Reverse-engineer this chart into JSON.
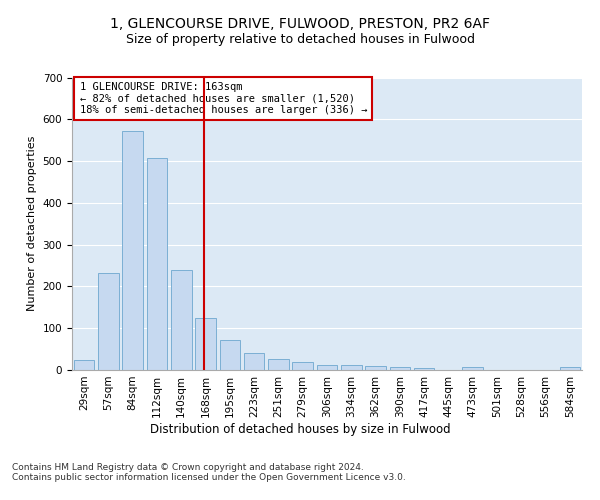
{
  "title1": "1, GLENCOURSE DRIVE, FULWOOD, PRESTON, PR2 6AF",
  "title2": "Size of property relative to detached houses in Fulwood",
  "xlabel": "Distribution of detached houses by size in Fulwood",
  "ylabel": "Number of detached properties",
  "footnote": "Contains HM Land Registry data © Crown copyright and database right 2024.\nContains public sector information licensed under the Open Government Licence v3.0.",
  "categories": [
    "29sqm",
    "57sqm",
    "84sqm",
    "112sqm",
    "140sqm",
    "168sqm",
    "195sqm",
    "223sqm",
    "251sqm",
    "279sqm",
    "306sqm",
    "334sqm",
    "362sqm",
    "390sqm",
    "417sqm",
    "445sqm",
    "473sqm",
    "501sqm",
    "528sqm",
    "556sqm",
    "584sqm"
  ],
  "values": [
    25,
    233,
    573,
    508,
    240,
    125,
    72,
    40,
    26,
    18,
    13,
    11,
    10,
    6,
    5,
    0,
    8,
    0,
    0,
    0,
    7
  ],
  "bar_color": "#c6d9f0",
  "bar_edgecolor": "#7bafd4",
  "vline_color": "#cc0000",
  "annotation_text": "1 GLENCOURSE DRIVE: 163sqm\n← 82% of detached houses are smaller (1,520)\n18% of semi-detached houses are larger (336) →",
  "annotation_box_color": "#cc0000",
  "ylim": [
    0,
    700
  ],
  "yticks": [
    0,
    100,
    200,
    300,
    400,
    500,
    600,
    700
  ],
  "bg_color": "#dce9f5",
  "fig_bg_color": "#ffffff",
  "grid_color": "#ffffff",
  "title1_fontsize": 10,
  "title2_fontsize": 9,
  "xlabel_fontsize": 8.5,
  "ylabel_fontsize": 8,
  "tick_fontsize": 7.5,
  "annot_fontsize": 7.5,
  "footnote_fontsize": 6.5
}
